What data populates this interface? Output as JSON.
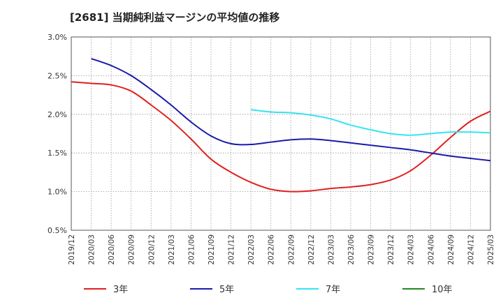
{
  "chart_data": {
    "type": "line",
    "title": "[2681]  当期純利益マージンの平均値の推移",
    "xlabel": "",
    "ylabel": "",
    "ylim": [
      0.5,
      3.0
    ],
    "y_tick_values": [
      0.5,
      1.0,
      1.5,
      2.0,
      2.5,
      3.0
    ],
    "y_tick_labels": [
      "0.5%",
      "1.0%",
      "1.5%",
      "2.0%",
      "2.5%",
      "3.0%"
    ],
    "x_tick_labels": [
      "2019/12",
      "2020/03",
      "2020/06",
      "2020/09",
      "2020/12",
      "2021/03",
      "2021/06",
      "2021/09",
      "2021/12",
      "2022/03",
      "2022/06",
      "2022/09",
      "2022/12",
      "2023/03",
      "2023/06",
      "2023/09",
      "2023/12",
      "2024/03",
      "2024/06",
      "2024/09",
      "2024/12",
      "2025/03"
    ],
    "grid": true,
    "legend_position": "bottom",
    "series": [
      {
        "name": "3年",
        "color": "#e02020",
        "values": [
          2.42,
          2.4,
          2.38,
          2.3,
          2.12,
          1.92,
          1.68,
          1.42,
          1.25,
          1.12,
          1.03,
          1.0,
          1.01,
          1.04,
          1.06,
          1.09,
          1.15,
          1.27,
          1.47,
          1.7,
          1.91,
          2.04
        ]
      },
      {
        "name": "5年",
        "color": "#1a1aaa",
        "values": [
          null,
          2.72,
          2.63,
          2.5,
          2.32,
          2.12,
          1.9,
          1.72,
          1.62,
          1.61,
          1.64,
          1.67,
          1.68,
          1.66,
          1.63,
          1.6,
          1.57,
          1.54,
          1.5,
          1.46,
          1.43,
          1.4
        ]
      },
      {
        "name": "7年",
        "color": "#33e5f0",
        "values": [
          null,
          null,
          null,
          null,
          null,
          null,
          null,
          null,
          null,
          2.06,
          2.03,
          2.02,
          1.99,
          1.94,
          1.86,
          1.8,
          1.75,
          1.73,
          1.75,
          1.77,
          1.77,
          1.76
        ]
      },
      {
        "name": "10年",
        "color": "#228822",
        "values": []
      }
    ]
  }
}
